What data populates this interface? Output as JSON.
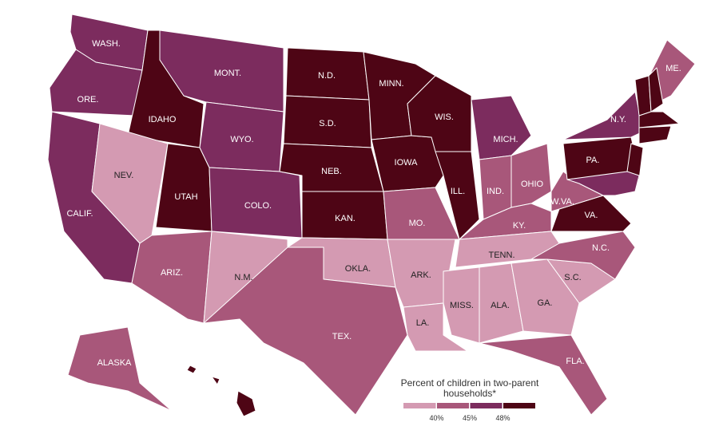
{
  "map": {
    "states": [
      {
        "label": "WASH.",
        "color": "#7c2c5e"
      },
      {
        "label": "ORE.",
        "color": "#7c2c5e"
      },
      {
        "label": "CALIF.",
        "color": "#7c2c5e"
      },
      {
        "label": "IDAHO",
        "color": "#4e0515"
      },
      {
        "label": "NEV.",
        "color": "#d49ab2"
      },
      {
        "label": "UTAH",
        "color": "#4e0515"
      },
      {
        "label": "ARIZ.",
        "color": "#a8577a"
      },
      {
        "label": "MONT.",
        "color": "#7c2c5e"
      },
      {
        "label": "WYO.",
        "color": "#7c2c5e"
      },
      {
        "label": "COLO.",
        "color": "#7c2c5e"
      },
      {
        "label": "N.M.",
        "color": "#d49ab2"
      },
      {
        "label": "N.D.",
        "color": "#4e0515"
      },
      {
        "label": "S.D.",
        "color": "#4e0515"
      },
      {
        "label": "NEB.",
        "color": "#4e0515"
      },
      {
        "label": "KAN.",
        "color": "#4e0515"
      },
      {
        "label": "OKLA.",
        "color": "#d49ab2"
      },
      {
        "label": "TEX.",
        "color": "#a8577a"
      },
      {
        "label": "MINN.",
        "color": "#4e0515"
      },
      {
        "label": "IOWA",
        "color": "#4e0515"
      },
      {
        "label": "MO.",
        "color": "#a8577a"
      },
      {
        "label": "ARK.",
        "color": "#d49ab2"
      },
      {
        "label": "LA.",
        "color": "#d49ab2"
      },
      {
        "label": "WIS.",
        "color": "#4e0515"
      },
      {
        "label": "ILL.",
        "color": "#4e0515"
      },
      {
        "label": "MICH.",
        "color": "#7c2c5e"
      },
      {
        "label": "IND.",
        "color": "#a8577a"
      },
      {
        "label": "OHIO",
        "color": "#a8577a"
      },
      {
        "label": "KY.",
        "color": "#a8577a"
      },
      {
        "label": "TENN.",
        "color": "#d49ab2"
      },
      {
        "label": "MISS.",
        "color": "#d49ab2"
      },
      {
        "label": "ALA.",
        "color": "#d49ab2"
      },
      {
        "label": "GA.",
        "color": "#d49ab2"
      },
      {
        "label": "FLA.",
        "color": "#a8577a"
      },
      {
        "label": "S.C.",
        "color": "#d49ab2"
      },
      {
        "label": "N.C.",
        "color": "#a8577a"
      },
      {
        "label": "VA.",
        "color": "#4e0515"
      },
      {
        "label": "W.VA.",
        "color": "#a8577a"
      },
      {
        "label": "PA.",
        "color": "#4e0515"
      },
      {
        "label": "N.Y.",
        "color": "#7c2c5e"
      },
      {
        "label": null,
        "color": "#4e0515"
      },
      {
        "label": null,
        "color": "#7c2c5e"
      },
      {
        "label": "ME.",
        "color": "#a8577a"
      },
      {
        "label": null,
        "color": "#4e0515"
      },
      {
        "label": null,
        "color": "#4e0515"
      },
      {
        "label": null,
        "color": "#4e0515"
      },
      {
        "label": null,
        "color": "#4e0515"
      },
      {
        "label": "ALASKA",
        "color": "#a8577a"
      },
      {
        "label": null,
        "color": "#4e0515"
      }
    ],
    "legend": {
      "title": "Percent of children in two-parent households*",
      "colors": [
        "#d49ab2",
        "#a8577a",
        "#7c2c5e",
        "#4e0515"
      ],
      "ticks": [
        {
          "value": 40,
          "label": "40%"
        },
        {
          "value": 45,
          "label": "45%"
        },
        {
          "value": 48,
          "label": "48%"
        }
      ]
    }
  }
}
